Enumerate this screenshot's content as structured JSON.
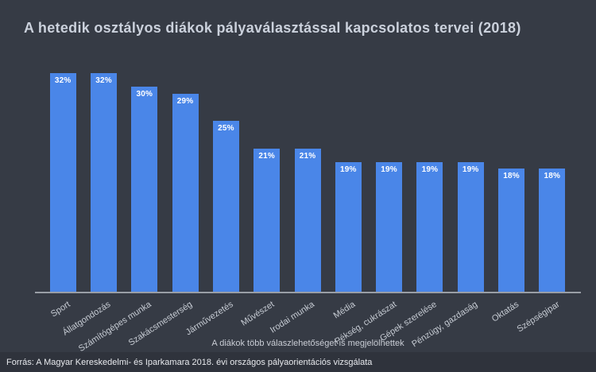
{
  "title": "A hetedik osztályos diákok pályaválasztással kapcsolatos tervei (2018)",
  "note": "A diákok több válaszlehetőséget is megjelölhettek",
  "footer": "Forrás: A Magyar Kereskedelmi- és Iparkamara 2018. évi országos pályaorientációs vizsgálata",
  "colors": {
    "background": "#363b45",
    "bar": "#4a86e8",
    "title_text": "#cbd1dc",
    "axis_line": "#999ea6",
    "category_text": "#c6cbd3",
    "value_text": "#ffffff",
    "footer_bg": "#2f333c",
    "footer_text": "#e8eaee"
  },
  "chart_data": {
    "type": "bar",
    "title": "A hetedik osztályos diákok pályaválasztással kapcsolatos tervei (2018)",
    "categories": [
      "Sport",
      "Állatgondozás",
      "Számítógépes munka",
      "Szakácsmesterség",
      "Járművezetés",
      "Művészet",
      "Irodai munka",
      "Média",
      "Pékség, cukrászat",
      "Gépek szerelése",
      "Pénzügy, gazdaság",
      "Oktatás",
      "Szépségipar"
    ],
    "values": [
      32,
      32,
      30,
      29,
      25,
      21,
      21,
      19,
      19,
      19,
      19,
      18,
      18
    ],
    "value_labels": [
      "32%",
      "32%",
      "30%",
      "29%",
      "25%",
      "21%",
      "21%",
      "19%",
      "19%",
      "19%",
      "19%",
      "18%",
      "18%"
    ],
    "xlabel": "",
    "ylabel": "",
    "ylim": [
      0,
      32
    ],
    "grid": false,
    "legend": false,
    "bar_color": "#4a86e8",
    "note": "A diákok több válaszlehetőséget is megjelölhettek"
  }
}
